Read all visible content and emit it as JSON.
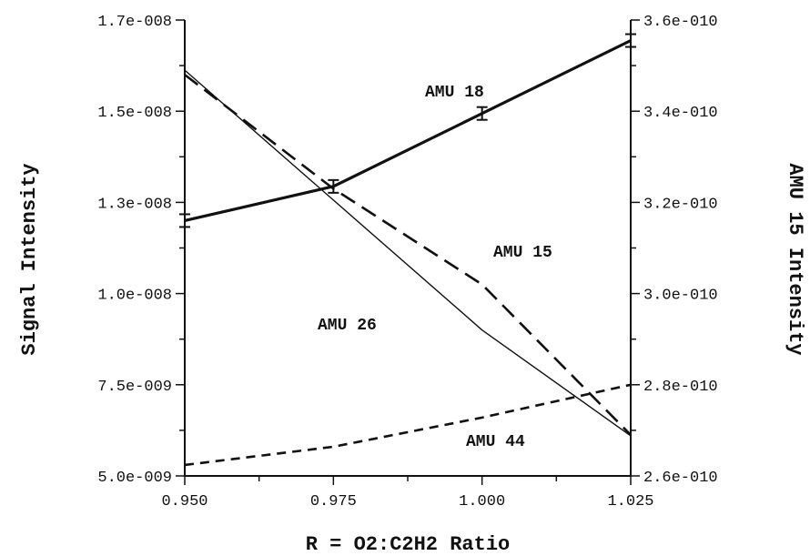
{
  "chart_data": {
    "type": "line",
    "title": "",
    "xlabel": "R = O2:C2H2 Ratio",
    "ylabel": "Signal Intensity",
    "ylabel_right": "AMU 15 Intensity",
    "xlim": [
      0.95,
      1.025
    ],
    "ylim": [
      5e-09,
      1.7e-08
    ],
    "ylim_right": [
      2.6e-10,
      3.6e-10
    ],
    "x_ticks": [
      0.95,
      0.975,
      1.0,
      1.025
    ],
    "x_tick_labels": [
      "0.950",
      "0.975",
      "1.000",
      "1.025"
    ],
    "y_ticks": [
      5e-09,
      7.5e-09,
      1e-08,
      1.3e-08,
      1.5e-08,
      1.7e-08
    ],
    "y_tick_labels": [
      "5.0e-009",
      "7.5e-009",
      "1.0e-008",
      "1.3e-008",
      "1.5e-008",
      "1.7e-008"
    ],
    "y_right_ticks": [
      2.6e-10,
      2.8e-10,
      3e-10,
      3.2e-10,
      3.4e-10,
      3.6e-10
    ],
    "y_right_tick_labels": [
      "2.6e-010",
      "2.8e-010",
      "3.0e-010",
      "3.2e-010",
      "3.4e-010",
      "3.6e-010"
    ],
    "grid": false,
    "series": [
      {
        "name": "AMU 18",
        "axis": "left",
        "style": "thick-solid",
        "error_bars": true,
        "x": [
          0.95,
          0.975,
          1.0,
          1.025
        ],
        "y": [
          1.24e-08,
          1.335e-08,
          1.495e-08,
          1.655e-08
        ]
      },
      {
        "name": "AMU 15",
        "axis": "right",
        "style": "long-dash",
        "x": [
          0.95,
          0.975,
          1.0,
          1.025
        ],
        "y": [
          3.48e-10,
          3.23e-10,
          3.02e-10,
          2.69e-10
        ]
      },
      {
        "name": "AMU 26",
        "axis": "left",
        "style": "thin-solid",
        "x": [
          0.95,
          0.975,
          1.0,
          1.025
        ],
        "y": [
          1.59e-08,
          1.305e-08,
          9e-09,
          6.1e-09
        ]
      },
      {
        "name": "AMU 44",
        "axis": "left",
        "style": "short-dash",
        "x": [
          0.95,
          0.975,
          1.0,
          1.025
        ],
        "y": [
          5.3e-09,
          5.8e-09,
          6.6e-09,
          7.5e-09
        ]
      }
    ],
    "annotations": [
      {
        "text": "AMU 18",
        "series": "AMU 18"
      },
      {
        "text": "AMU 15",
        "series": "AMU 15"
      },
      {
        "text": "AMU 26",
        "series": "AMU 26"
      },
      {
        "text": "AMU 44",
        "series": "AMU 44"
      }
    ]
  }
}
